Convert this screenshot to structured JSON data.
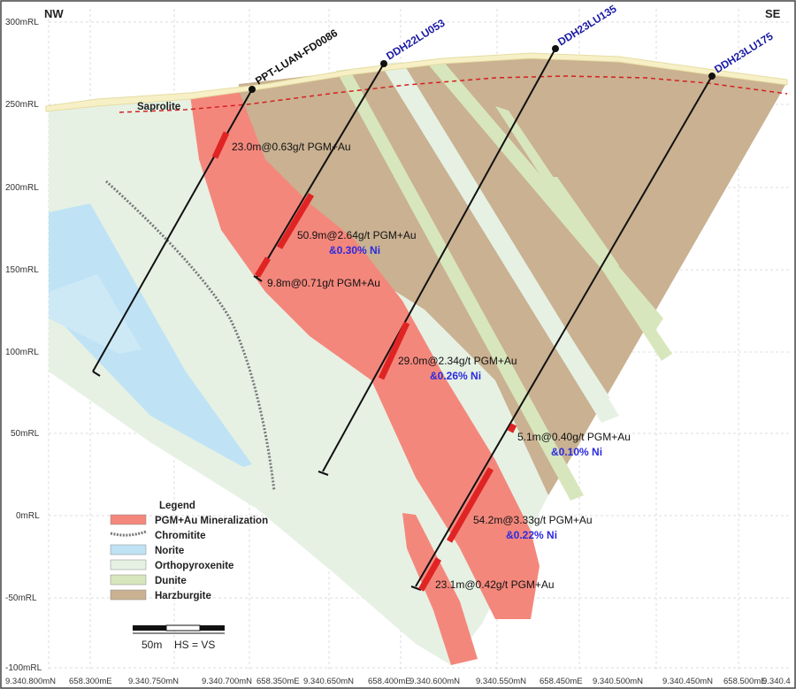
{
  "corner_left": "NW",
  "corner_right": "SE",
  "y_axis_labels": [
    "300mRL",
    "250mRL",
    "200mRL",
    "150mRL",
    "100mRL",
    "50mRL",
    "0mRL",
    "-50mRL",
    "-100mRL"
  ],
  "x_axis_labels": [
    "9.340.800mN",
    "658.300mE",
    "9.340.750mN",
    "9.340.700mN",
    "658.350mE",
    "9.340.650mN",
    "658.400mE",
    "9.340.600mN",
    "9.340.550mN",
    "658.450mE",
    "9.340.500mN",
    "9.340.450mN",
    "658.500mE",
    "9.340.4"
  ],
  "saprolite_label": "Saprolite",
  "drillholes": [
    {
      "name": "PPT-LUAN-FD0086",
      "color": "#111111"
    },
    {
      "name": "DDH22LU053",
      "color": "#1a1aa6"
    },
    {
      "name": "DDH23LU135",
      "color": "#1a1aa6"
    },
    {
      "name": "DDH23LU175",
      "color": "#1a1aa6"
    }
  ],
  "intercepts": [
    {
      "text": "23.0m@0.63g/t PGM+Au",
      "ni": ""
    },
    {
      "text": "50.9m@2.64g/t PGM+Au",
      "ni": "&0.30% Ni"
    },
    {
      "text": "9.8m@0.71g/t PGM+Au",
      "ni": ""
    },
    {
      "text": "29.0m@2.34g/t PGM+Au",
      "ni": "&0.26% Ni"
    },
    {
      "text": "5.1m@0.40g/t PGM+Au",
      "ni": "&0.10% Ni"
    },
    {
      "text": "54.2m@3.33g/t PGM+Au",
      "ni": "&0.22% Ni"
    },
    {
      "text": "23.1m@0.42g/t PGM+Au",
      "ni": ""
    }
  ],
  "legend": {
    "title": "Legend",
    "items": [
      {
        "label": "PGM+Au Mineralization",
        "color": "#f4877c"
      },
      {
        "label": "Chromitite",
        "color": "#777777"
      },
      {
        "label": "Norite",
        "color": "#bfe3f5"
      },
      {
        "label": "Orthopyroxenite",
        "color": "#e6f1e4"
      },
      {
        "label": "Dunite",
        "color": "#d8e6bd"
      },
      {
        "label": "Harzburgite",
        "color": "#c9b191"
      }
    ]
  },
  "scale_bar": {
    "label": "50m",
    "note": "HS = VS"
  },
  "colors": {
    "mineralization": "#f4877c",
    "intercept": "#e02424",
    "norite": "#bfe3f5",
    "orthopyroxenite": "#e6f1e4",
    "dunite": "#d8e6bd",
    "harzburgite": "#c9b191",
    "saprolite_line": "#d42020",
    "surface": "#f7f0c6",
    "ni_text": "#2a2ae0"
  }
}
